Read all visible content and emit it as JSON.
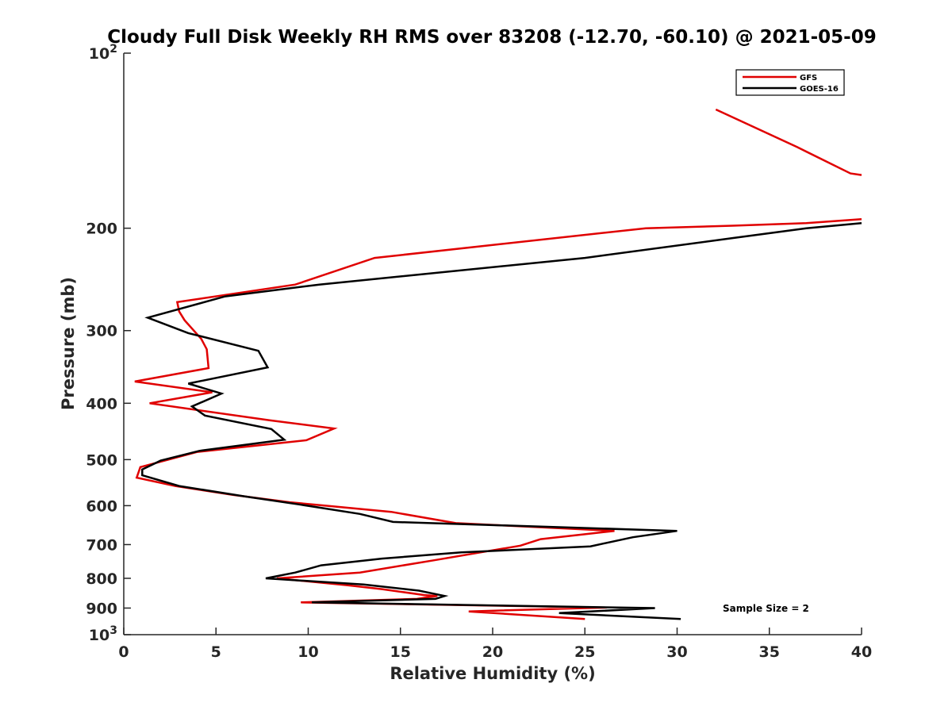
{
  "chart_data": {
    "type": "line",
    "title": "Cloudy Full Disk Weekly RH RMS over 83208 (-12.70, -60.10) @ 2021-05-09",
    "xlabel": "Relative Humidity (%)",
    "ylabel": "Pressure (mb)",
    "xlim": [
      0,
      40
    ],
    "ylim": [
      100,
      1000
    ],
    "yscale": "log",
    "yreversed": true,
    "grid": false,
    "legend_position": "top-right",
    "x_ticks": [
      {
        "value": 0,
        "label": "0"
      },
      {
        "value": 5,
        "label": "5"
      },
      {
        "value": 10,
        "label": "10"
      },
      {
        "value": 15,
        "label": "15"
      },
      {
        "value": 20,
        "label": "20"
      },
      {
        "value": 25,
        "label": "25"
      },
      {
        "value": 30,
        "label": "30"
      },
      {
        "value": 35,
        "label": "35"
      },
      {
        "value": 40,
        "label": "40"
      }
    ],
    "y_ticks": [
      {
        "value": 100,
        "base": "10",
        "exp": "2"
      },
      {
        "value": 200,
        "label": "200"
      },
      {
        "value": 300,
        "label": "300"
      },
      {
        "value": 400,
        "label": "400"
      },
      {
        "value": 500,
        "label": "500"
      },
      {
        "value": 600,
        "label": "600"
      },
      {
        "value": 700,
        "label": "700"
      },
      {
        "value": 800,
        "label": "800"
      },
      {
        "value": 900,
        "label": "900"
      },
      {
        "value": 1000,
        "base": "10",
        "exp": "3"
      }
    ],
    "series": [
      {
        "name": "GFS",
        "color": "#e00000",
        "segments": [
          [
            [
              32.1,
              125
            ],
            [
              36.5,
              145
            ],
            [
              39.4,
              161
            ],
            [
              40.0,
              162
            ]
          ],
          [
            [
              40.0,
              193
            ],
            [
              37.0,
              196
            ],
            [
              33.0,
              198
            ],
            [
              28.3,
              200
            ],
            [
              13.6,
              225
            ],
            [
              9.3,
              250
            ],
            [
              2.9,
              268
            ],
            [
              3.0,
              278
            ],
            [
              3.3,
              288
            ],
            [
              4.2,
              310
            ],
            [
              4.5,
              323
            ],
            [
              4.6,
              348
            ],
            [
              0.6,
              367
            ],
            [
              4.8,
              383
            ],
            [
              1.4,
              400
            ],
            [
              7.9,
              428
            ],
            [
              11.4,
              442
            ],
            [
              9.9,
              463
            ],
            [
              4.0,
              485
            ],
            [
              0.9,
              515
            ],
            [
              0.7,
              537
            ],
            [
              2.8,
              555
            ],
            [
              5.9,
              575
            ],
            [
              9.0,
              592
            ],
            [
              14.5,
              615
            ],
            [
              18.0,
              643
            ],
            [
              26.6,
              663
            ],
            [
              22.6,
              685
            ],
            [
              21.5,
              703
            ],
            [
              16.8,
              745
            ],
            [
              12.8,
              782
            ],
            [
              8.3,
              800
            ],
            [
              12.1,
              822
            ],
            [
              14.0,
              835
            ],
            [
              16.3,
              855
            ],
            [
              17.0,
              858
            ],
            [
              16.5,
              862
            ],
            [
              15.9,
              868
            ],
            [
              9.6,
              880
            ],
            [
              26.2,
              898
            ],
            [
              25.0,
              900
            ],
            [
              18.7,
              912
            ],
            [
              25.0,
              940
            ]
          ]
        ]
      },
      {
        "name": "GOES-16",
        "color": "#000000",
        "segments": [
          [
            [
              40.0,
              196
            ],
            [
              37.0,
              200
            ],
            [
              33.0,
              208
            ],
            [
              25.0,
              225
            ],
            [
              10.6,
              250
            ],
            [
              5.5,
              262
            ],
            [
              1.3,
              285
            ],
            [
              3.5,
              303
            ],
            [
              7.3,
              325
            ],
            [
              7.8,
              347
            ],
            [
              3.5,
              370
            ],
            [
              5.3,
              385
            ],
            [
              3.7,
              405
            ],
            [
              4.4,
              420
            ],
            [
              8.0,
              443
            ],
            [
              8.7,
              462
            ],
            [
              4.1,
              483
            ],
            [
              2.0,
              502
            ],
            [
              1.0,
              520
            ],
            [
              1.0,
              532
            ],
            [
              3.0,
              555
            ],
            [
              6.5,
              578
            ],
            [
              9.5,
              597
            ],
            [
              12.8,
              620
            ],
            [
              14.6,
              640
            ],
            [
              30.0,
              663
            ],
            [
              27.6,
              680
            ],
            [
              25.3,
              705
            ],
            [
              18.3,
              722
            ],
            [
              14.0,
              740
            ],
            [
              10.7,
              760
            ],
            [
              9.3,
              782
            ],
            [
              7.7,
              800
            ],
            [
              13.0,
              820
            ],
            [
              16.0,
              840
            ],
            [
              17.4,
              858
            ],
            [
              16.9,
              868
            ],
            [
              10.2,
              880
            ],
            [
              28.8,
              900
            ],
            [
              23.6,
              918
            ],
            [
              30.2,
              940
            ]
          ]
        ]
      }
    ],
    "annotations": [
      "Sample Size = 2"
    ]
  }
}
